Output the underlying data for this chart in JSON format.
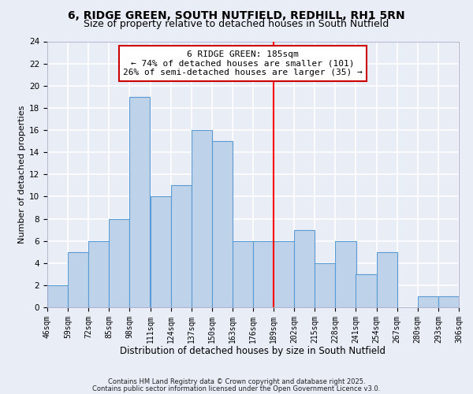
{
  "title": "6, RIDGE GREEN, SOUTH NUTFIELD, REDHILL, RH1 5RN",
  "subtitle": "Size of property relative to detached houses in South Nutfield",
  "xlabel": "Distribution of detached houses by size in South Nutfield",
  "ylabel": "Number of detached properties",
  "bin_edges": [
    46,
    59,
    72,
    85,
    98,
    111,
    124,
    137,
    150,
    163,
    176,
    189,
    202,
    215,
    228,
    241,
    254,
    267,
    280,
    293,
    306
  ],
  "counts": [
    2,
    5,
    6,
    8,
    19,
    10,
    11,
    16,
    15,
    6,
    6,
    6,
    7,
    4,
    6,
    3,
    5,
    0,
    1,
    1
  ],
  "bar_color": "#bed3e9",
  "bar_edge_color": "#5b9bd5",
  "vline_x": 189,
  "vline_color": "red",
  "annotation_text": "6 RIDGE GREEN: 185sqm\n← 74% of detached houses are smaller (101)\n26% of semi-detached houses are larger (35) →",
  "annotation_box_color": "white",
  "annotation_box_edge": "#cc0000",
  "ylim": [
    0,
    24
  ],
  "yticks": [
    0,
    2,
    4,
    6,
    8,
    10,
    12,
    14,
    16,
    18,
    20,
    22,
    24
  ],
  "tick_labels": [
    "46sqm",
    "59sqm",
    "72sqm",
    "85sqm",
    "98sqm",
    "111sqm",
    "124sqm",
    "137sqm",
    "150sqm",
    "163sqm",
    "176sqm",
    "189sqm",
    "202sqm",
    "215sqm",
    "228sqm",
    "241sqm",
    "254sqm",
    "267sqm",
    "280sqm",
    "293sqm",
    "306sqm"
  ],
  "footnote1": "Contains HM Land Registry data © Crown copyright and database right 2025.",
  "footnote2": "Contains public sector information licensed under the Open Government Licence v3.0.",
  "background_color": "#e8edf6",
  "grid_color": "#ffffff",
  "title_fontsize": 10,
  "subtitle_fontsize": 9,
  "xlabel_fontsize": 8.5,
  "ylabel_fontsize": 8,
  "tick_fontsize": 7,
  "annotation_fontsize": 8,
  "footnote_fontsize": 6
}
